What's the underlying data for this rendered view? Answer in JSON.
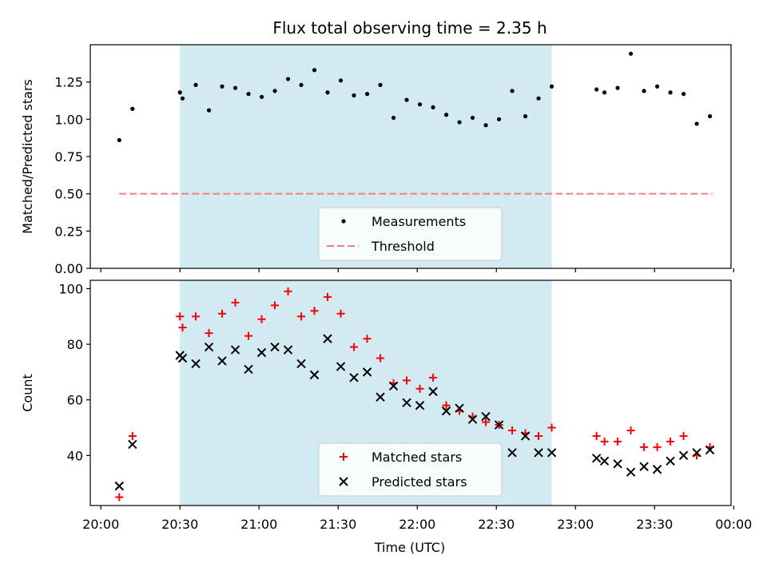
{
  "title": "Flux total observing time = 2.35 h",
  "xlabel": "Time (UTC)",
  "x_tick_labels": [
    "20:00",
    "20:30",
    "21:00",
    "21:30",
    "22:00",
    "22:30",
    "23:00",
    "23:30",
    "00:00"
  ],
  "colors": {
    "highlight": "#add8e6",
    "measurement": "#000000",
    "threshold": "#f08080",
    "matched": "#ff0000",
    "predicted": "#000000"
  },
  "chart_data": [
    {
      "type": "scatter",
      "ylabel": "Matched/Predicted stars",
      "xlim": [
        "19:56",
        "23:59"
      ],
      "ylim": [
        0,
        1.5
      ],
      "y_ticks": [
        "0.00",
        "0.25",
        "0.50",
        "0.75",
        "1.00",
        "1.25"
      ],
      "highlight_span": [
        "20:30",
        "22:51"
      ],
      "legend": {
        "placement": "lower center",
        "entries": [
          "Measurements",
          "Threshold"
        ]
      },
      "threshold": {
        "name": "Threshold",
        "value": 0.5,
        "x": [
          "20:07",
          "23:52"
        ]
      },
      "series": [
        {
          "name": "Measurements",
          "x": [
            "20:07",
            "20:12",
            "20:30",
            "20:31",
            "20:36",
            "20:41",
            "20:46",
            "20:51",
            "20:56",
            "21:01",
            "21:06",
            "21:11",
            "21:16",
            "21:21",
            "21:26",
            "21:31",
            "21:36",
            "21:41",
            "21:46",
            "21:51",
            "21:56",
            "22:01",
            "22:06",
            "22:11",
            "22:16",
            "22:21",
            "22:26",
            "22:31",
            "22:36",
            "22:41",
            "22:46",
            "22:51",
            "23:08",
            "23:11",
            "23:16",
            "23:21",
            "23:26",
            "23:31",
            "23:36",
            "23:41",
            "23:46",
            "23:51"
          ],
          "y": [
            0.86,
            1.07,
            1.18,
            1.14,
            1.23,
            1.06,
            1.22,
            1.21,
            1.17,
            1.15,
            1.19,
            1.27,
            1.23,
            1.33,
            1.18,
            1.26,
            1.16,
            1.17,
            1.23,
            1.01,
            1.13,
            1.1,
            1.08,
            1.03,
            0.98,
            1.01,
            0.96,
            1.0,
            1.19,
            1.02,
            1.14,
            1.22,
            1.2,
            1.18,
            1.21,
            1.44,
            1.19,
            1.22,
            1.18,
            1.17,
            0.97,
            1.02
          ]
        }
      ]
    },
    {
      "type": "scatter",
      "ylabel": "Count",
      "xlim": [
        "19:56",
        "23:59"
      ],
      "ylim": [
        22,
        103
      ],
      "y_ticks": [
        "40",
        "60",
        "80",
        "100"
      ],
      "highlight_span": [
        "20:30",
        "22:51"
      ],
      "legend": {
        "placement": "lower center",
        "entries": [
          "Matched stars",
          "Predicted stars"
        ]
      },
      "series": [
        {
          "name": "Matched stars",
          "x": [
            "20:07",
            "20:12",
            "20:30",
            "20:31",
            "20:36",
            "20:41",
            "20:46",
            "20:51",
            "20:56",
            "21:01",
            "21:06",
            "21:11",
            "21:16",
            "21:21",
            "21:26",
            "21:31",
            "21:36",
            "21:41",
            "21:46",
            "21:51",
            "21:56",
            "22:01",
            "22:06",
            "22:11",
            "22:16",
            "22:21",
            "22:26",
            "22:31",
            "22:36",
            "22:41",
            "22:46",
            "22:51",
            "23:08",
            "23:11",
            "23:16",
            "23:21",
            "23:26",
            "23:31",
            "23:36",
            "23:41",
            "23:46",
            "23:51"
          ],
          "y": [
            25,
            47,
            90,
            86,
            90,
            84,
            91,
            95,
            83,
            89,
            94,
            99,
            90,
            92,
            97,
            91,
            79,
            82,
            75,
            66,
            67,
            64,
            68,
            58,
            56,
            54,
            52,
            51,
            49,
            48,
            47,
            50,
            47,
            45,
            45,
            49,
            43,
            43,
            45,
            47,
            40,
            43
          ]
        },
        {
          "name": "Predicted stars",
          "x": [
            "20:07",
            "20:12",
            "20:30",
            "20:31",
            "20:36",
            "20:41",
            "20:46",
            "20:51",
            "20:56",
            "21:01",
            "21:06",
            "21:11",
            "21:16",
            "21:21",
            "21:26",
            "21:31",
            "21:36",
            "21:41",
            "21:46",
            "21:51",
            "21:56",
            "22:01",
            "22:06",
            "22:11",
            "22:16",
            "22:21",
            "22:26",
            "22:31",
            "22:36",
            "22:41",
            "22:46",
            "22:51",
            "23:08",
            "23:11",
            "23:16",
            "23:21",
            "23:26",
            "23:31",
            "23:36",
            "23:41",
            "23:46",
            "23:51"
          ],
          "y": [
            29,
            44,
            76,
            75,
            73,
            79,
            74,
            78,
            71,
            77,
            79,
            78,
            73,
            69,
            82,
            72,
            68,
            70,
            61,
            65,
            59,
            58,
            63,
            56,
            57,
            53,
            54,
            51,
            41,
            47,
            41,
            41,
            39,
            38,
            37,
            34,
            36,
            35,
            38,
            40,
            41,
            42
          ]
        }
      ]
    }
  ]
}
